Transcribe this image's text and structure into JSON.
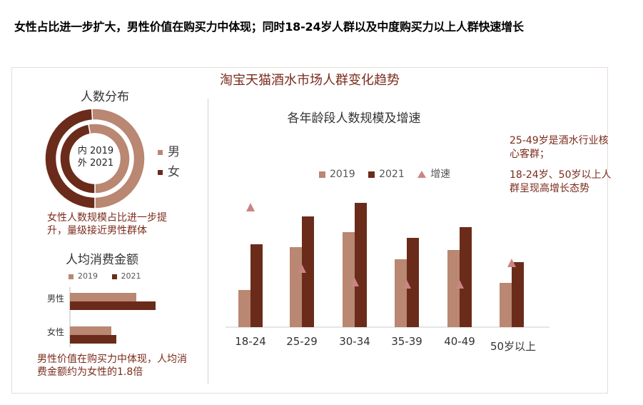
{
  "headline": "女性占比进一步扩大，男性价值在购买力中体现；同时18-24岁人群以及中度购买力以上人群快速增长",
  "main_title": "淘宝天猫酒水市场人群变化趋势",
  "colors": {
    "y2019": "#b98772",
    "y2021": "#6b2b1a",
    "growth": "#c98584",
    "caption": "#7a2b1b"
  },
  "left_panel": {
    "donut_title": "人数分布",
    "donut_center_line1": "内 2019",
    "donut_center_line2": "外 2021",
    "donut_legend": [
      {
        "label": "男",
        "color": "#b98772"
      },
      {
        "label": "女",
        "color": "#6b2b1a"
      }
    ],
    "donut_caption": "女性人数规模占比进一步提升，量级接近男性群体",
    "bar_title": "人均消费金额",
    "bar_caption": "男性价值在购买力中体现，人均消费金额约为女性的1.8倍"
  },
  "right_panel": {
    "note_1": "25-49岁是酒水行业核心客群；",
    "note_2": "18-24岁、50岁以上人群呈现高增长态势"
  },
  "chart_data": [
    {
      "type": "pie",
      "title": "人数分布",
      "series": [
        {
          "name": "2019",
          "labels": [
            "男",
            "女"
          ],
          "values": [
            53,
            47
          ]
        },
        {
          "name": "2021",
          "labels": [
            "男",
            "女"
          ],
          "values": [
            51,
            49
          ]
        }
      ]
    },
    {
      "type": "bar",
      "title": "人均消费金额",
      "orientation": "horizontal",
      "categories": [
        "男性",
        "女性"
      ],
      "series": [
        {
          "name": "2019",
          "values": [
            93,
            58
          ]
        },
        {
          "name": "2021",
          "values": [
            120,
            65
          ]
        }
      ],
      "legend": "top"
    },
    {
      "type": "bar",
      "title": "各年龄段人数规模及增速",
      "categories": [
        "18-24",
        "25-29",
        "30-34",
        "35-39",
        "40-49",
        "50岁以上"
      ],
      "series": [
        {
          "name": "2019",
          "values": [
            52,
            112,
            133,
            95,
            108,
            62
          ]
        },
        {
          "name": "2021",
          "values": [
            116,
            155,
            174,
            125,
            140,
            91
          ]
        },
        {
          "name": "增速",
          "type": "marker",
          "values": [
            168,
            82,
            63,
            60,
            60,
            90
          ]
        }
      ],
      "ylim": [
        0,
        200
      ],
      "legend": "top"
    }
  ]
}
